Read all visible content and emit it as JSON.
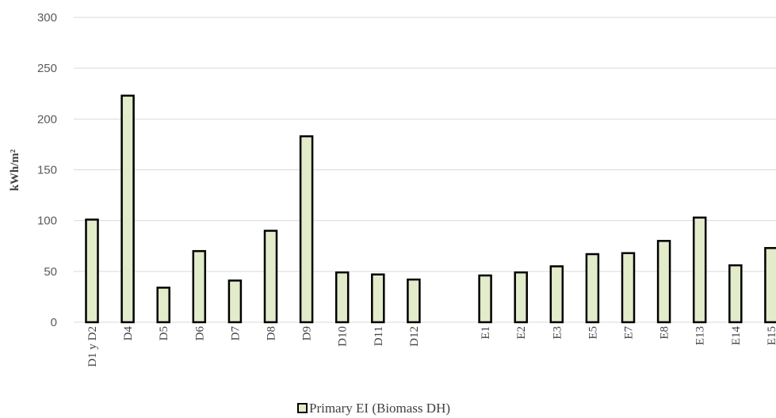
{
  "chart_data": {
    "type": "bar",
    "ylabel": "kWh/m²",
    "xlabel": "",
    "ylim": [
      0,
      300
    ],
    "yticks": [
      0,
      50,
      100,
      150,
      200,
      250,
      300
    ],
    "grid": true,
    "legend_position": "bottom",
    "colors": {
      "bar_fill": "#e2ebca",
      "bar_stroke": "#000000",
      "grid": "#d9d9d9"
    },
    "categories": [
      "D1 y D2",
      "D4",
      "D5",
      "D6",
      "D7",
      "D8",
      "D9",
      "D10",
      "D11",
      "D12",
      "",
      "E1",
      "E2",
      "E3",
      "E5",
      "E7",
      "E8",
      "E13",
      "E14",
      "E15"
    ],
    "series": [
      {
        "name": "Primary EI  (Biomass DH)",
        "values": [
          101,
          223,
          34,
          70,
          41,
          90,
          183,
          49,
          47,
          42,
          null,
          46,
          49,
          55,
          67,
          68,
          80,
          103,
          56,
          73
        ]
      }
    ]
  }
}
